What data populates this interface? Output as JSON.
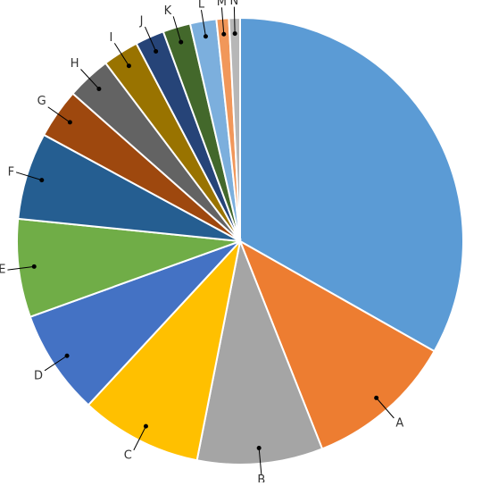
{
  "chart_data": {
    "type": "pie",
    "categories": [
      null,
      "A",
      "B",
      "C",
      "D",
      "E",
      "F",
      "G",
      "H",
      "I",
      "J",
      "K",
      "L",
      "M",
      "N"
    ],
    "values": [
      33.2,
      10.8,
      9.1,
      8.8,
      7.6,
      7.1,
      6.3,
      3.6,
      3.2,
      2.6,
      2.1,
      2.0,
      1.9,
      0.9,
      0.8
    ],
    "colors": [
      "#5b9bd5",
      "#ed7d31",
      "#a5a5a5",
      "#ffc000",
      "#4472c4",
      "#70ad47",
      "#255e91",
      "#9e480e",
      "#636363",
      "#997300",
      "#264478",
      "#43682b",
      "#7cafdd",
      "#f1975a",
      "#b7b7b7"
    ]
  }
}
